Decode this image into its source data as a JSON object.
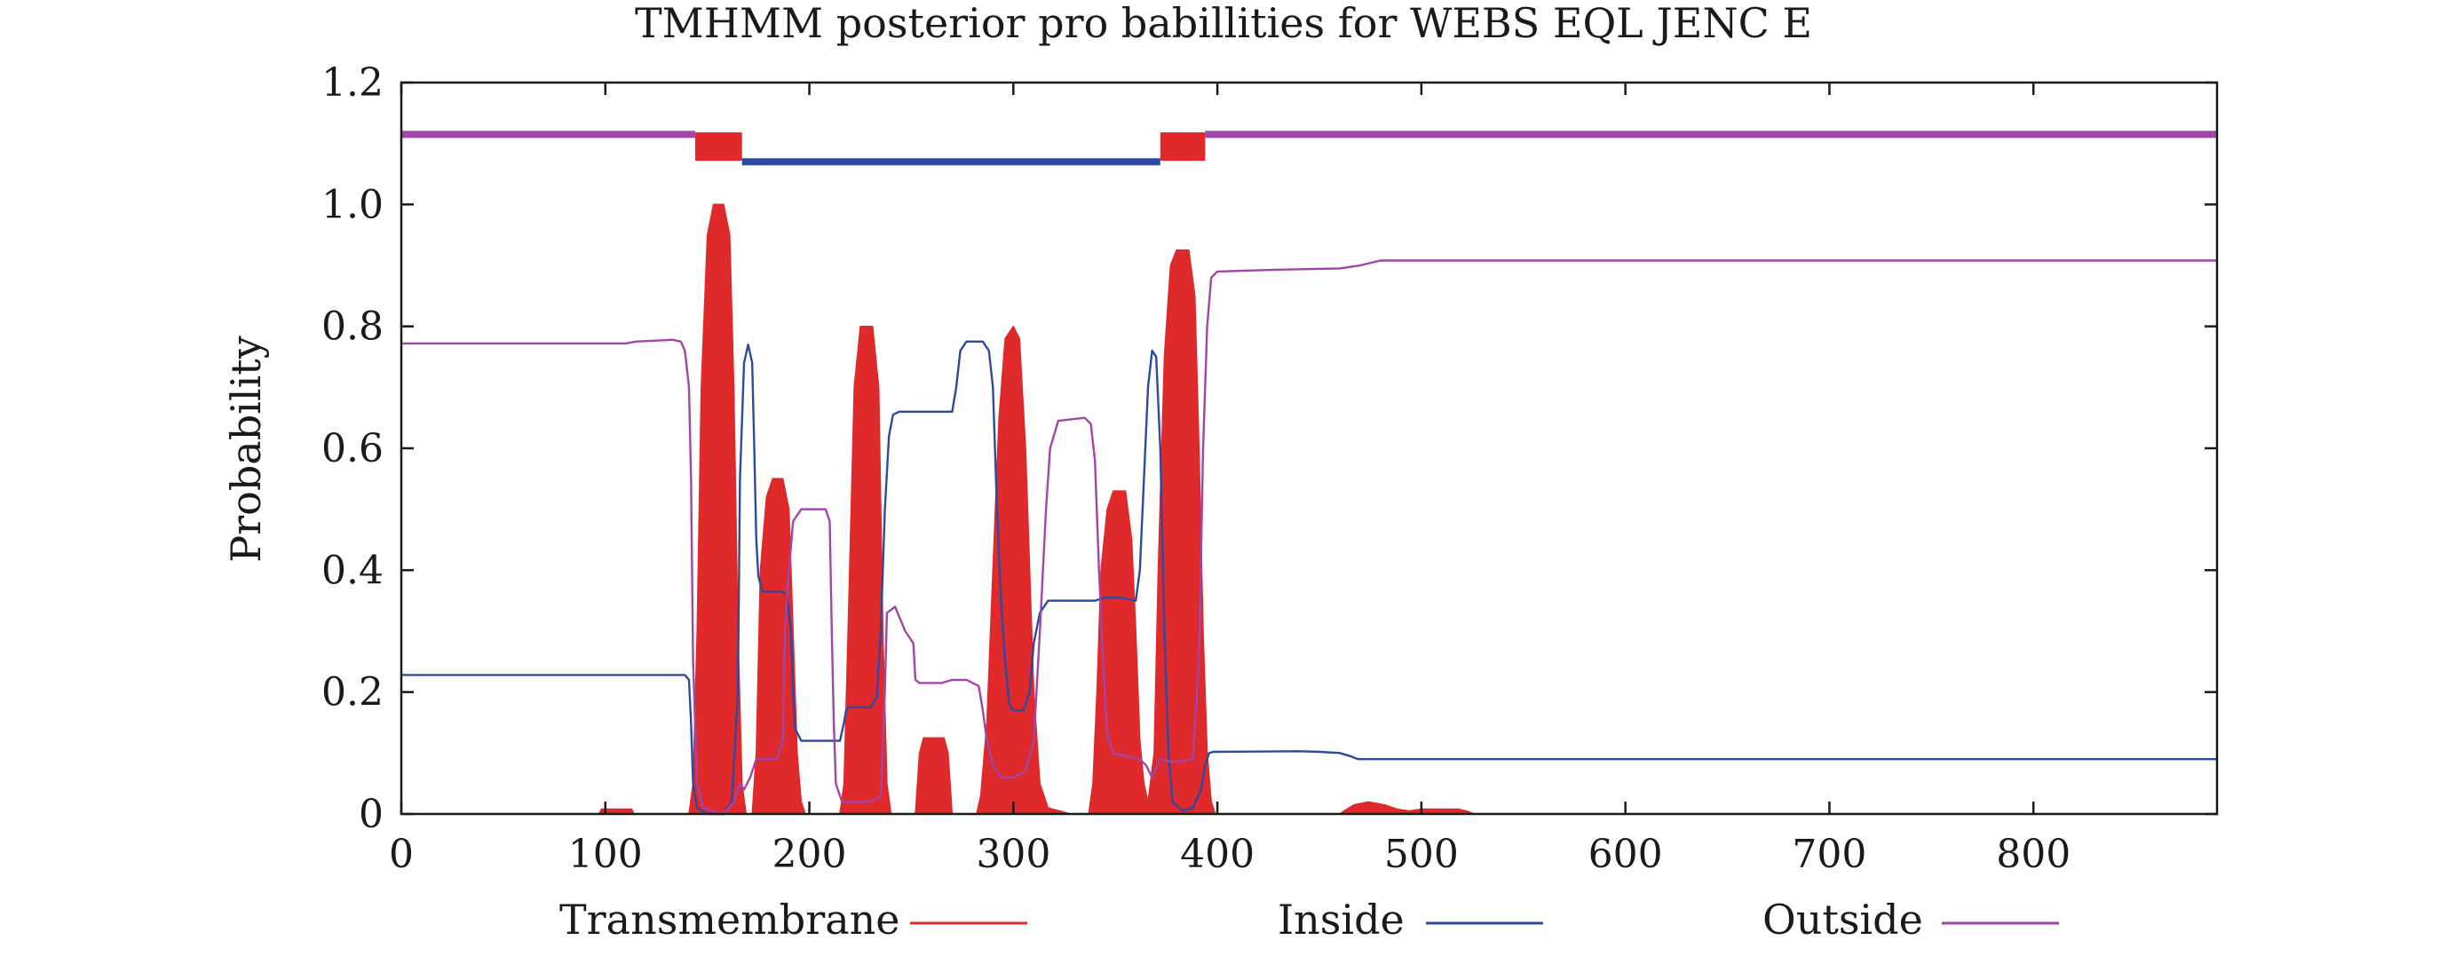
{
  "chart_data": {
    "type": "area",
    "title": "TMHMM posterior pro babillities for WEBS EQL JENC E",
    "xlabel": "",
    "ylabel": "Probability",
    "xlim": [
      0,
      890
    ],
    "ylim": [
      0,
      1.2
    ],
    "x_ticks": [
      0,
      100,
      200,
      300,
      400,
      500,
      600,
      700,
      800
    ],
    "y_ticks": [
      0,
      0.2,
      0.4,
      0.6,
      0.8,
      1.0,
      1.2
    ],
    "x_tick_labels": [
      "0",
      "100",
      "200",
      "300",
      "400",
      "500",
      "600",
      "700",
      "800"
    ],
    "y_tick_labels": [
      "0",
      "0.2",
      "0.4",
      "0.6",
      "0.8",
      "1.0",
      "1.2"
    ],
    "grid": false,
    "legend": {
      "position": "bottom",
      "entries": [
        "Transmembrane",
        "Inside",
        "Outside"
      ]
    },
    "colors": {
      "transmembrane": "#e0292a",
      "inside": "#2b4aa0",
      "outside": "#a046a8",
      "axis": "#1a1a1a"
    },
    "topology": {
      "y_outside": 1.115,
      "y_inside": 1.07,
      "y_tm": 1.095,
      "segments": [
        {
          "type": "outside",
          "start": 0,
          "end": 144
        },
        {
          "type": "tm",
          "start": 144,
          "end": 167
        },
        {
          "type": "inside",
          "start": 167,
          "end": 372
        },
        {
          "type": "tm",
          "start": 372,
          "end": 394
        },
        {
          "type": "outside",
          "start": 394,
          "end": 890
        }
      ]
    },
    "series": [
      {
        "name": "Transmembrane",
        "style": "filled",
        "points": [
          [
            0,
            0
          ],
          [
            97,
            0
          ],
          [
            98,
            0.008
          ],
          [
            113,
            0.008
          ],
          [
            114,
            0
          ],
          [
            141,
            0
          ],
          [
            143,
            0.05
          ],
          [
            145,
            0.3
          ],
          [
            147,
            0.7
          ],
          [
            150,
            0.95
          ],
          [
            153,
            1.0
          ],
          [
            158,
            1.0
          ],
          [
            161,
            0.95
          ],
          [
            163,
            0.7
          ],
          [
            165,
            0.3
          ],
          [
            167,
            0.05
          ],
          [
            169,
            0
          ],
          [
            172,
            0
          ],
          [
            174,
            0.1
          ],
          [
            176,
            0.4
          ],
          [
            179,
            0.52
          ],
          [
            182,
            0.55
          ],
          [
            187,
            0.55
          ],
          [
            190,
            0.5
          ],
          [
            192,
            0.3
          ],
          [
            194,
            0.1
          ],
          [
            196,
            0.02
          ],
          [
            198,
            0
          ],
          [
            215,
            0
          ],
          [
            217,
            0.05
          ],
          [
            219,
            0.3
          ],
          [
            222,
            0.7
          ],
          [
            225,
            0.8
          ],
          [
            231,
            0.8
          ],
          [
            234,
            0.7
          ],
          [
            236,
            0.3
          ],
          [
            238,
            0.05
          ],
          [
            240,
            0
          ],
          [
            252,
            0
          ],
          [
            254,
            0.1
          ],
          [
            256,
            0.125
          ],
          [
            266,
            0.125
          ],
          [
            268,
            0.1
          ],
          [
            270,
            0
          ],
          [
            282,
            0
          ],
          [
            284,
            0.03
          ],
          [
            287,
            0.15
          ],
          [
            290,
            0.4
          ],
          [
            293,
            0.65
          ],
          [
            296,
            0.78
          ],
          [
            300,
            0.8
          ],
          [
            303,
            0.78
          ],
          [
            306,
            0.6
          ],
          [
            308,
            0.4
          ],
          [
            310,
            0.2
          ],
          [
            313,
            0.05
          ],
          [
            317,
            0.01
          ],
          [
            328,
            0
          ],
          [
            337,
            0
          ],
          [
            339,
            0.05
          ],
          [
            341,
            0.2
          ],
          [
            343,
            0.4
          ],
          [
            346,
            0.5
          ],
          [
            349,
            0.53
          ],
          [
            355,
            0.53
          ],
          [
            358,
            0.45
          ],
          [
            360,
            0.3
          ],
          [
            362,
            0.12
          ],
          [
            364,
            0.05
          ],
          [
            366,
            0.02
          ],
          [
            369,
            0.1
          ],
          [
            371,
            0.4
          ],
          [
            374,
            0.75
          ],
          [
            377,
            0.9
          ],
          [
            380,
            0.925
          ],
          [
            386,
            0.925
          ],
          [
            389,
            0.85
          ],
          [
            391,
            0.6
          ],
          [
            393,
            0.3
          ],
          [
            395,
            0.1
          ],
          [
            397,
            0.02
          ],
          [
            399,
            0
          ],
          [
            460,
            0
          ],
          [
            462,
            0.005
          ],
          [
            467,
            0.015
          ],
          [
            474,
            0.02
          ],
          [
            482,
            0.015
          ],
          [
            488,
            0.008
          ],
          [
            494,
            0.005
          ],
          [
            500,
            0.008
          ],
          [
            506,
            0.008
          ],
          [
            518,
            0.008
          ],
          [
            522,
            0.005
          ],
          [
            526,
            0
          ],
          [
            890,
            0
          ]
        ]
      },
      {
        "name": "Inside",
        "style": "line",
        "points": [
          [
            0,
            0.228
          ],
          [
            139,
            0.228
          ],
          [
            141,
            0.22
          ],
          [
            142,
            0.15
          ],
          [
            143,
            0.05
          ],
          [
            145,
            0.01
          ],
          [
            150,
            0.0
          ],
          [
            158,
            0.0
          ],
          [
            162,
            0.02
          ],
          [
            165,
            0.2
          ],
          [
            166,
            0.55
          ],
          [
            168,
            0.74
          ],
          [
            170,
            0.77
          ],
          [
            172,
            0.74
          ],
          [
            173,
            0.6
          ],
          [
            174,
            0.45
          ],
          [
            175,
            0.39
          ],
          [
            177,
            0.365
          ],
          [
            186,
            0.365
          ],
          [
            189,
            0.36
          ],
          [
            191,
            0.3
          ],
          [
            192,
            0.2
          ],
          [
            193,
            0.14
          ],
          [
            196,
            0.12
          ],
          [
            200,
            0.12
          ],
          [
            204,
            0.12
          ],
          [
            208,
            0.12
          ],
          [
            212,
            0.12
          ],
          [
            215,
            0.12
          ],
          [
            217,
            0.15
          ],
          [
            218,
            0.17
          ],
          [
            219,
            0.175
          ],
          [
            230,
            0.175
          ],
          [
            233,
            0.19
          ],
          [
            235,
            0.3
          ],
          [
            237,
            0.5
          ],
          [
            239,
            0.62
          ],
          [
            241,
            0.655
          ],
          [
            244,
            0.66
          ],
          [
            270,
            0.66
          ],
          [
            272,
            0.7
          ],
          [
            274,
            0.76
          ],
          [
            277,
            0.775
          ],
          [
            285,
            0.775
          ],
          [
            288,
            0.76
          ],
          [
            290,
            0.7
          ],
          [
            292,
            0.5
          ],
          [
            294,
            0.35
          ],
          [
            296,
            0.25
          ],
          [
            298,
            0.18
          ],
          [
            300,
            0.17
          ],
          [
            305,
            0.17
          ],
          [
            308,
            0.2
          ],
          [
            310,
            0.28
          ],
          [
            313,
            0.33
          ],
          [
            317,
            0.35
          ],
          [
            337,
            0.35
          ],
          [
            340,
            0.35
          ],
          [
            345,
            0.355
          ],
          [
            352,
            0.355
          ],
          [
            360,
            0.35
          ],
          [
            362,
            0.4
          ],
          [
            364,
            0.55
          ],
          [
            366,
            0.7
          ],
          [
            368,
            0.76
          ],
          [
            370,
            0.75
          ],
          [
            372,
            0.6
          ],
          [
            374,
            0.3
          ],
          [
            376,
            0.1
          ],
          [
            378,
            0.02
          ],
          [
            383,
            0.005
          ],
          [
            388,
            0.01
          ],
          [
            392,
            0.04
          ],
          [
            394,
            0.08
          ],
          [
            396,
            0.1
          ],
          [
            398,
            0.102
          ],
          [
            440,
            0.103
          ],
          [
            450,
            0.102
          ],
          [
            460,
            0.1
          ],
          [
            465,
            0.095
          ],
          [
            469,
            0.09
          ],
          [
            480,
            0.09
          ],
          [
            890,
            0.09
          ]
        ]
      },
      {
        "name": "Outside",
        "style": "line",
        "points": [
          [
            0,
            0.772
          ],
          [
            110,
            0.772
          ],
          [
            115,
            0.775
          ],
          [
            133,
            0.778
          ],
          [
            137,
            0.775
          ],
          [
            139,
            0.76
          ],
          [
            141,
            0.7
          ],
          [
            142,
            0.55
          ],
          [
            143,
            0.25
          ],
          [
            145,
            0.05
          ],
          [
            148,
            0.01
          ],
          [
            158,
            0.0
          ],
          [
            163,
            0.02
          ],
          [
            166,
            0.05
          ],
          [
            168,
            0.04
          ],
          [
            171,
            0.06
          ],
          [
            174,
            0.09
          ],
          [
            184,
            0.09
          ],
          [
            187,
            0.12
          ],
          [
            188,
            0.3
          ],
          [
            190,
            0.4
          ],
          [
            192,
            0.48
          ],
          [
            196,
            0.5
          ],
          [
            208,
            0.5
          ],
          [
            210,
            0.48
          ],
          [
            211,
            0.3
          ],
          [
            212,
            0.15
          ],
          [
            213,
            0.05
          ],
          [
            216,
            0.02
          ],
          [
            230,
            0.02
          ],
          [
            235,
            0.03
          ],
          [
            237,
            0.2
          ],
          [
            238,
            0.33
          ],
          [
            242,
            0.34
          ],
          [
            247,
            0.3
          ],
          [
            251,
            0.28
          ],
          [
            252,
            0.22
          ],
          [
            254,
            0.215
          ],
          [
            265,
            0.215
          ],
          [
            270,
            0.22
          ],
          [
            277,
            0.22
          ],
          [
            283,
            0.21
          ],
          [
            285,
            0.17
          ],
          [
            287,
            0.12
          ],
          [
            290,
            0.08
          ],
          [
            294,
            0.06
          ],
          [
            300,
            0.06
          ],
          [
            306,
            0.07
          ],
          [
            310,
            0.12
          ],
          [
            313,
            0.3
          ],
          [
            316,
            0.5
          ],
          [
            318,
            0.6
          ],
          [
            322,
            0.645
          ],
          [
            335,
            0.65
          ],
          [
            338,
            0.64
          ],
          [
            340,
            0.58
          ],
          [
            342,
            0.4
          ],
          [
            344,
            0.25
          ],
          [
            346,
            0.13
          ],
          [
            349,
            0.1
          ],
          [
            362,
            0.09
          ],
          [
            365,
            0.08
          ],
          [
            368,
            0.06
          ],
          [
            372,
            0.09
          ],
          [
            379,
            0.085
          ],
          [
            388,
            0.09
          ],
          [
            391,
            0.25
          ],
          [
            393,
            0.6
          ],
          [
            395,
            0.8
          ],
          [
            397,
            0.88
          ],
          [
            400,
            0.89
          ],
          [
            430,
            0.893
          ],
          [
            460,
            0.895
          ],
          [
            470,
            0.9
          ],
          [
            480,
            0.908
          ],
          [
            500,
            0.908
          ],
          [
            890,
            0.908
          ]
        ]
      }
    ]
  }
}
